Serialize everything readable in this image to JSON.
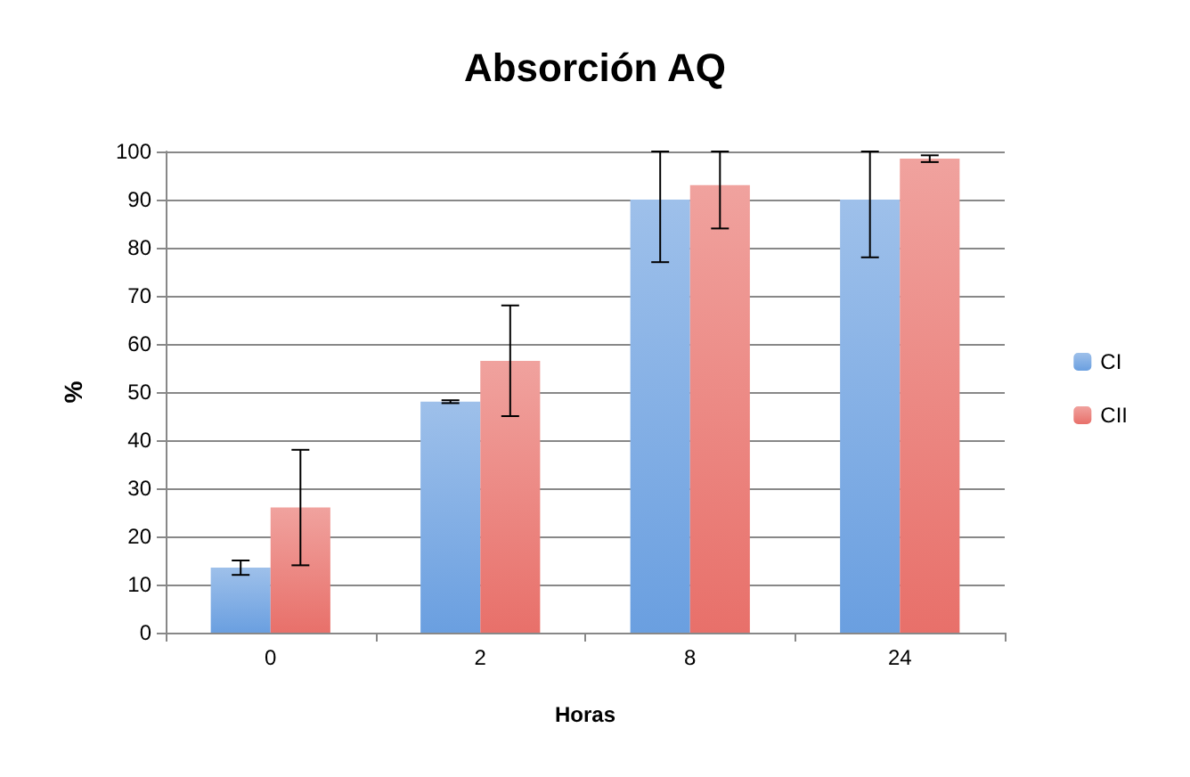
{
  "chart_data": {
    "type": "bar",
    "title": "Absorción AQ",
    "xlabel": "Horas",
    "ylabel": "%",
    "categories": [
      "0",
      "2",
      "8",
      "24"
    ],
    "series": [
      {
        "name": "CI",
        "color": "#6a9fe0",
        "values": [
          13.5,
          48,
          90,
          90
        ],
        "errors": [
          1.5,
          0.3,
          [
            77,
            100
          ],
          [
            78,
            100
          ]
        ]
      },
      {
        "name": "CII",
        "color": "#e8706a",
        "values": [
          26,
          56.5,
          93,
          98.5
        ],
        "errors": [
          12,
          11.5,
          [
            84,
            100
          ],
          0.7
        ]
      }
    ],
    "ylim": [
      0,
      100
    ],
    "yticks": [
      0,
      10,
      20,
      30,
      40,
      50,
      60,
      70,
      80,
      90,
      100
    ],
    "grid": "y",
    "legend": "right"
  }
}
